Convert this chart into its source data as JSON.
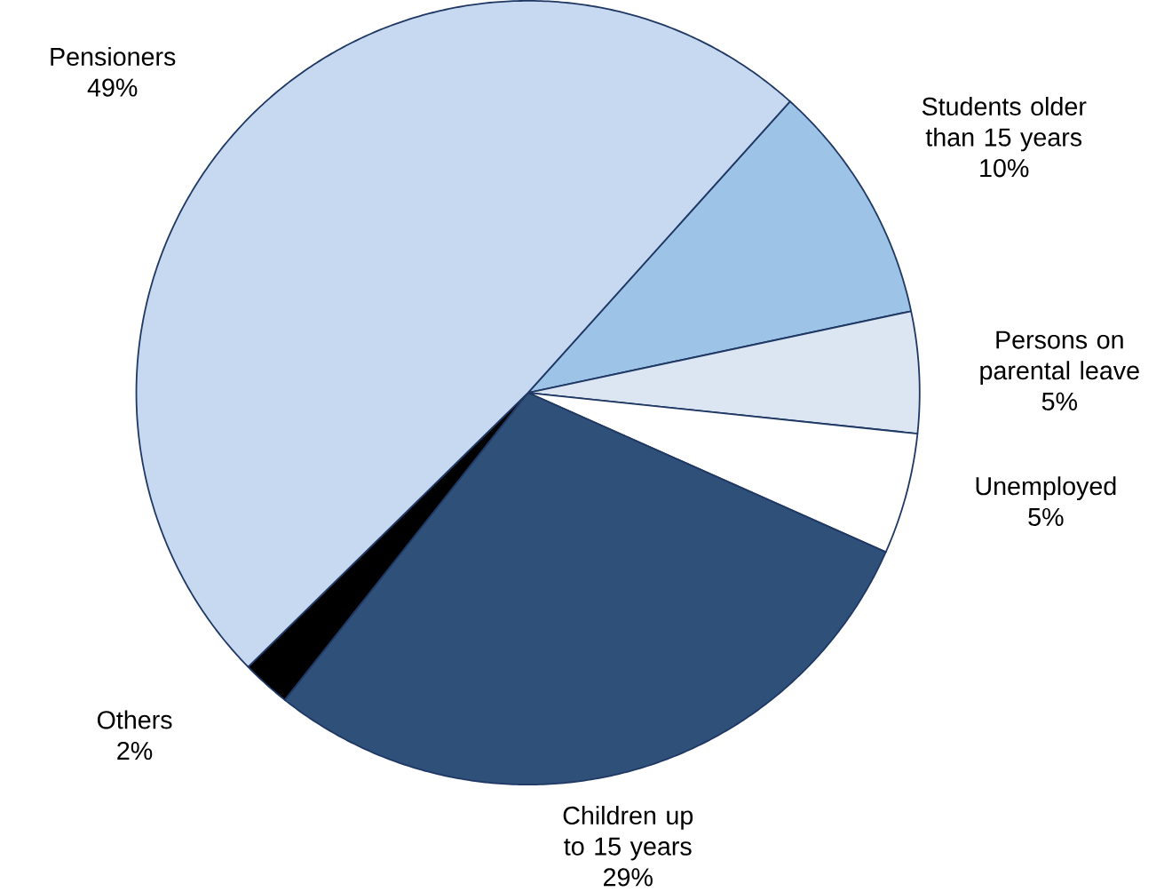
{
  "chart_data": {
    "type": "pie",
    "categories": [
      "Students older than 15 years",
      "Persons on parental leave",
      "Unemployed",
      "Children up to 15 years",
      "Others",
      "Pensioners"
    ],
    "values": [
      10,
      5,
      5,
      29,
      2,
      49
    ],
    "value_labels": [
      "10%",
      "5%",
      "5%",
      "29%",
      "2%",
      "49%"
    ],
    "colors": [
      "#9dc3e6",
      "#dce6f2",
      "#ffffff",
      "#2f5179",
      "#000000",
      "#c6d9f1"
    ]
  }
}
